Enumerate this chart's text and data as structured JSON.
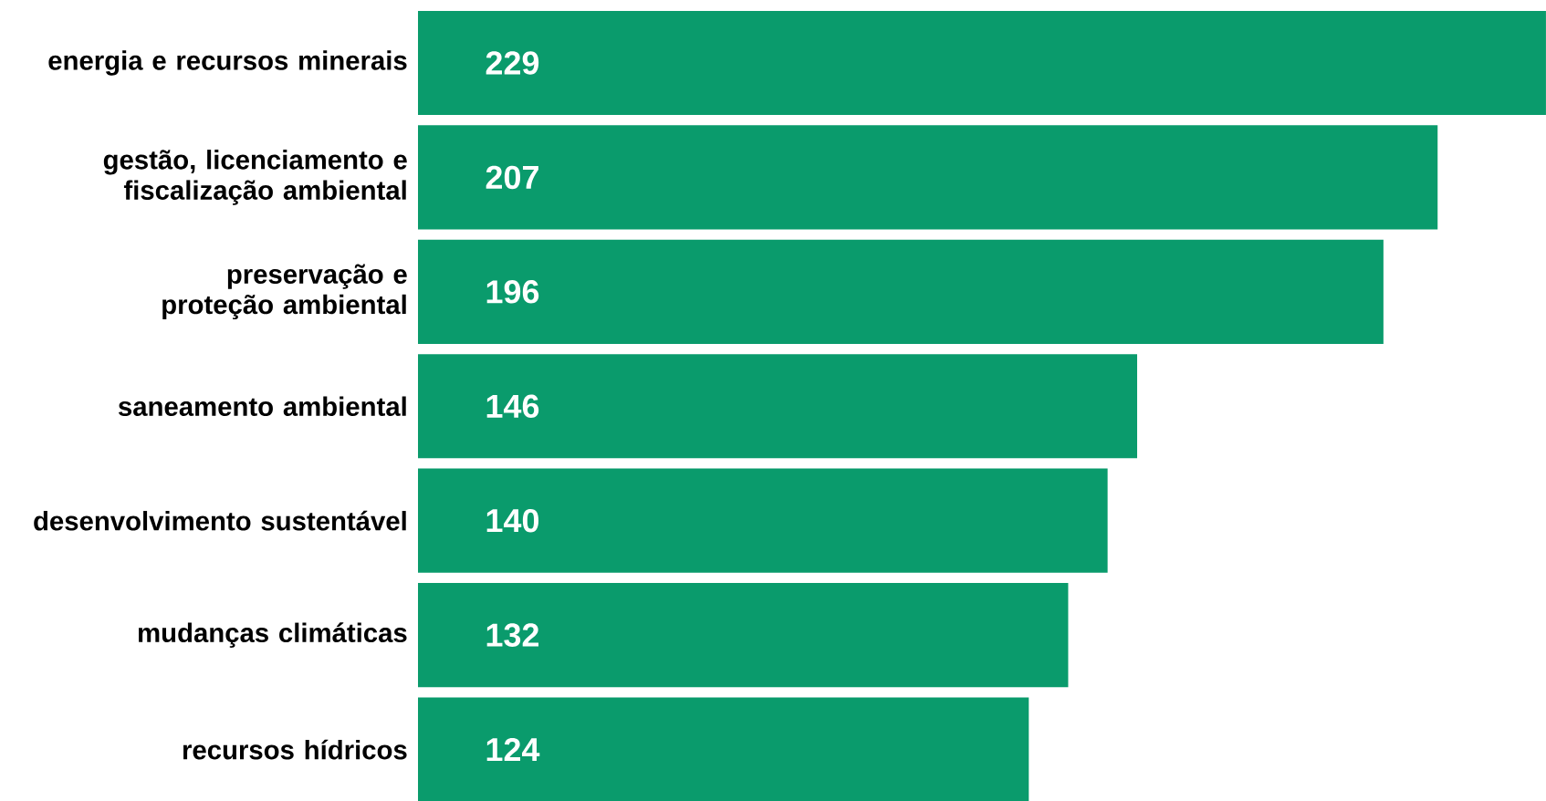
{
  "chart_data": {
    "type": "bar",
    "orientation": "horizontal",
    "data_labels": true,
    "color": "#0a9b6c",
    "categories": [
      "energia e recursos minerais",
      "gestão, licenciamento e fiscalização ambiental",
      "preservação e proteção ambiental",
      "saneamento ambiental",
      "desenvolvimento sustentável",
      "mudanças climáticas",
      "recursos hídricos"
    ],
    "values": [
      229,
      207,
      196,
      146,
      140,
      132,
      124
    ],
    "xlim": [
      0,
      229
    ]
  }
}
